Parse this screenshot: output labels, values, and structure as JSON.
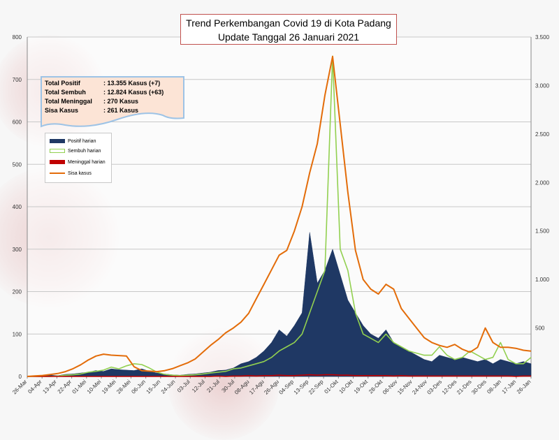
{
  "chart_data": {
    "type": "area",
    "title": "Trend Perkembangan Covid 19 di Kota Padang",
    "subtitle": "Update Tanggal 26 Januari 2021",
    "left_axis": {
      "ylim": [
        0,
        800
      ],
      "ticks": [
        "0",
        "100",
        "200",
        "300",
        "400",
        "500",
        "600",
        "700",
        "800"
      ]
    },
    "right_axis": {
      "ylim": [
        0,
        3500
      ],
      "ticks": [
        "",
        "500",
        "1.000",
        "1.500",
        "2.000",
        "2.500",
        "3.000",
        "3.500"
      ]
    },
    "x_ticks": [
      "26-Mar",
      "04-Apr",
      "13-Apr",
      "22-Apr",
      "01-Mei",
      "10-Mei",
      "19-Mei",
      "28-Mei",
      "06-Jun",
      "15-Jun",
      "24-Jun",
      "03-Jul",
      "12-Jul",
      "21-Jul",
      "30-Jul",
      "08-Agu",
      "17-Agu",
      "26-Agu",
      "04-Sep",
      "13-Sep",
      "22-Sep",
      "01-Okt",
      "10-Okt",
      "19-Okt",
      "28-Okt",
      "06-Nov",
      "15-Nov",
      "24-Nov",
      "03-Des",
      "12-Des",
      "21-Des",
      "30-Des",
      "08-Jan",
      "17-Jan",
      "26-Jan"
    ],
    "grid": true,
    "legend_position": "top-left",
    "series": [
      {
        "name": "Positif harian",
        "type": "area",
        "axis": "left",
        "color": "#1f3864",
        "values": [
          0,
          1,
          2,
          3,
          2,
          5,
          6,
          8,
          10,
          14,
          12,
          18,
          16,
          15,
          14,
          18,
          12,
          8,
          6,
          4,
          3,
          5,
          6,
          8,
          10,
          14,
          15,
          20,
          30,
          35,
          45,
          60,
          80,
          110,
          95,
          120,
          150,
          340,
          220,
          250,
          300,
          240,
          180,
          150,
          120,
          100,
          90,
          110,
          80,
          70,
          60,
          50,
          40,
          35,
          50,
          45,
          40,
          45,
          40,
          35,
          40,
          30,
          40,
          35,
          30,
          35,
          30
        ]
      },
      {
        "name": "Sembuh harian",
        "type": "line",
        "axis": "left",
        "color": "#92d050",
        "values": [
          0,
          0,
          0,
          0,
          1,
          3,
          4,
          6,
          10,
          12,
          15,
          22,
          18,
          25,
          30,
          28,
          20,
          10,
          5,
          3,
          2,
          3,
          4,
          6,
          8,
          10,
          12,
          18,
          20,
          25,
          30,
          35,
          45,
          60,
          70,
          80,
          100,
          150,
          200,
          250,
          755,
          300,
          250,
          150,
          100,
          90,
          80,
          100,
          80,
          70,
          60,
          55,
          50,
          50,
          70,
          50,
          40,
          45,
          60,
          50,
          40,
          45,
          80,
          40,
          30,
          30,
          45
        ]
      },
      {
        "name": "Meninggal harian",
        "type": "line",
        "axis": "left",
        "color": "#c00000",
        "values": [
          0,
          0,
          0,
          0,
          0,
          0,
          0,
          0,
          0,
          0,
          0,
          0,
          0,
          0,
          0,
          0,
          0,
          0,
          0,
          0,
          0,
          0,
          0,
          0,
          0,
          1,
          0,
          1,
          1,
          2,
          1,
          2,
          2,
          3,
          2,
          2,
          3,
          4,
          3,
          4,
          4,
          3,
          3,
          2,
          2,
          2,
          2,
          2,
          1,
          2,
          1,
          1,
          1,
          1,
          1,
          1,
          1,
          1,
          1,
          1,
          1,
          1,
          1,
          1,
          0,
          1,
          1
        ]
      },
      {
        "name": "Sisa kasus",
        "type": "line",
        "axis": "right",
        "color": "#e36c09",
        "values": [
          0,
          5,
          10,
          20,
          30,
          50,
          80,
          120,
          170,
          210,
          230,
          220,
          215,
          210,
          100,
          60,
          55,
          50,
          60,
          80,
          110,
          140,
          180,
          250,
          320,
          380,
          450,
          500,
          560,
          650,
          800,
          950,
          1100,
          1250,
          1300,
          1500,
          1750,
          2100,
          2400,
          2900,
          3300,
          2600,
          1900,
          1300,
          1000,
          900,
          850,
          950,
          900,
          700,
          600,
          500,
          400,
          350,
          320,
          300,
          330,
          280,
          250,
          300,
          500,
          350,
          300,
          300,
          290,
          270,
          261
        ]
      }
    ]
  },
  "callout": {
    "rows": [
      {
        "label": "Total Positif",
        "value": ": 13.355 Kasus (+7)"
      },
      {
        "label": "Total Sembuh",
        "value": ": 12.824 Kasus (+63)"
      },
      {
        "label": "Total Meninggal",
        "value": ":       270 Kasus"
      },
      {
        "label": "Sisa Kasus",
        "value": ":       261 Kasus"
      }
    ]
  },
  "legend": {
    "positif": "Positif harian",
    "sembuh": "Sembuh harian",
    "meninggal": "Meninggal harian",
    "sisa": "Sisa kasus"
  }
}
